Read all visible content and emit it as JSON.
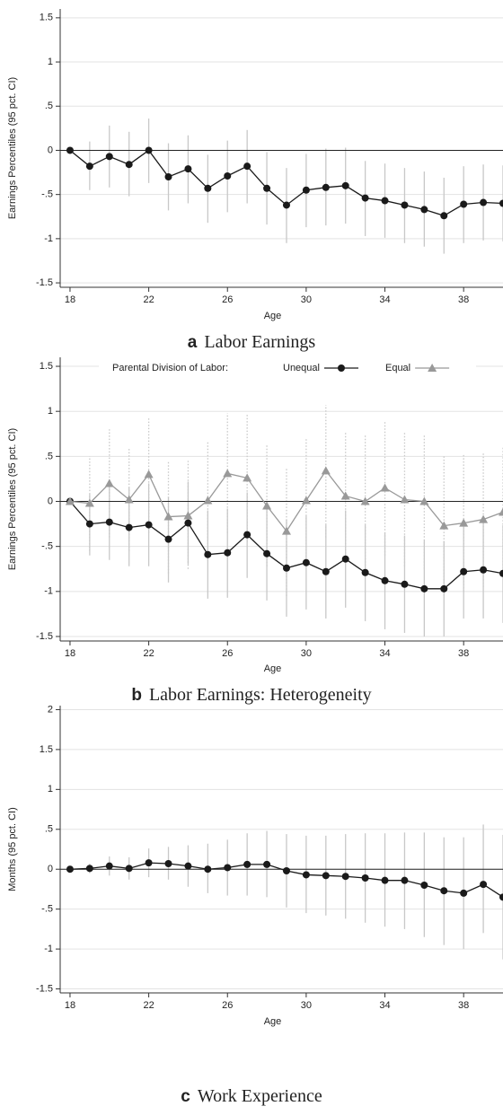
{
  "chart_data": [
    {
      "type": "line",
      "label": "a",
      "title": "Labor Earnings",
      "x_label": "Age",
      "y_label": "Earnings Percentiles (95 pct. CI)",
      "x": [
        18,
        19,
        20,
        21,
        22,
        23,
        24,
        25,
        26,
        27,
        28,
        29,
        30,
        31,
        32,
        33,
        34,
        35,
        36,
        37,
        38,
        39,
        40
      ],
      "xlim": [
        17.5,
        40
      ],
      "xticks": [
        18,
        22,
        26,
        30,
        34,
        38
      ],
      "ylim": [
        -1.55,
        1.6
      ],
      "yticks": [
        1.5,
        1,
        {
          "value": 0.5,
          "label": ".5"
        },
        0,
        {
          "value": -0.5,
          "label": "-.5"
        },
        -1,
        -1.5
      ],
      "grid": true,
      "hline": 0,
      "series": [
        {
          "color": "#1a1a1a",
          "ci_color": "#c8c8c8",
          "ci_dotted": false,
          "marker": "circle",
          "values": [
            0,
            -0.18,
            -0.07,
            -0.16,
            0,
            -0.3,
            -0.21,
            -0.43,
            -0.29,
            -0.18,
            -0.43,
            -0.62,
            -0.45,
            -0.42,
            -0.4,
            -0.54,
            -0.57,
            -0.62,
            -0.67,
            -0.74,
            -0.61,
            -0.59,
            -0.6
          ],
          "ci_low": [
            null,
            -0.45,
            -0.42,
            -0.52,
            -0.37,
            -0.68,
            -0.6,
            -0.82,
            -0.7,
            -0.6,
            -0.84,
            -1.05,
            -0.87,
            -0.85,
            -0.83,
            -0.97,
            -0.99,
            -1.05,
            -1.09,
            -1.17,
            -1.05,
            -1.02,
            -1.03
          ],
          "ci_high": [
            null,
            0.1,
            0.28,
            0.21,
            0.36,
            0.08,
            0.17,
            -0.05,
            0.11,
            0.23,
            -0.02,
            -0.2,
            -0.04,
            0.02,
            0.03,
            -0.12,
            -0.15,
            -0.2,
            -0.24,
            -0.31,
            -0.18,
            -0.16,
            -0.17
          ]
        }
      ]
    },
    {
      "type": "line",
      "label": "b",
      "title": "Labor Earnings: Heterogeneity",
      "x_label": "Age",
      "y_label": "Earnings Percentiles (95 pct. CI)",
      "legend_title": "Parental Division of Labor:",
      "legend": "top",
      "x": [
        18,
        19,
        20,
        21,
        22,
        23,
        24,
        25,
        26,
        27,
        28,
        29,
        30,
        31,
        32,
        33,
        34,
        35,
        36,
        37,
        38,
        39,
        40
      ],
      "xlim": [
        17.5,
        40
      ],
      "xticks": [
        18,
        22,
        26,
        30,
        34,
        38
      ],
      "ylim": [
        -1.55,
        1.6
      ],
      "yticks": [
        1.5,
        1,
        {
          "value": 0.5,
          "label": ".5"
        },
        0,
        {
          "value": -0.5,
          "label": "-.5"
        },
        -1,
        -1.5
      ],
      "grid": true,
      "hline": 0,
      "series": [
        {
          "name": "Unequal",
          "color": "#1a1a1a",
          "ci_color": "#c8c8c8",
          "ci_dotted": false,
          "marker": "circle",
          "values": [
            0,
            -0.25,
            -0.23,
            -0.29,
            -0.26,
            -0.42,
            -0.24,
            -0.59,
            -0.57,
            -0.37,
            -0.58,
            -0.74,
            -0.68,
            -0.78,
            -0.64,
            -0.79,
            -0.88,
            -0.92,
            -0.97,
            -0.97,
            -0.78,
            -0.76,
            -0.8
          ],
          "ci_low": [
            null,
            -0.6,
            -0.65,
            -0.72,
            -0.72,
            -0.9,
            -0.7,
            -1.08,
            -1.07,
            -0.85,
            -1.1,
            -1.28,
            -1.2,
            -1.3,
            -1.18,
            -1.33,
            -1.42,
            -1.46,
            -1.5,
            -1.5,
            -1.3,
            -1.3,
            -1.35
          ],
          "ci_high": [
            null,
            0.08,
            0.2,
            0.15,
            0.2,
            0.05,
            0.22,
            -0.1,
            -0.08,
            0.1,
            -0.07,
            -0.2,
            -0.16,
            -0.26,
            -0.1,
            -0.26,
            -0.35,
            -0.38,
            -0.43,
            -0.44,
            -0.25,
            -0.22,
            -0.26
          ]
        },
        {
          "name": "Equal",
          "color": "#999999",
          "ci_color": "#c8c8c8",
          "ci_dotted": true,
          "marker": "triangle",
          "values": [
            0,
            -0.02,
            0.2,
            0.02,
            0.3,
            -0.17,
            -0.16,
            0.01,
            0.31,
            0.26,
            -0.05,
            -0.33,
            0.01,
            0.34,
            0.06,
            0,
            0.15,
            0.02,
            0,
            -0.27,
            -0.24,
            -0.2,
            -0.12
          ],
          "ci_low": [
            null,
            -0.55,
            -0.4,
            -0.55,
            -0.35,
            -0.8,
            -0.75,
            -0.65,
            -0.35,
            -0.45,
            -0.72,
            -1.05,
            -0.65,
            -0.4,
            -0.65,
            -0.75,
            -0.6,
            -0.72,
            -0.75,
            -1.05,
            -1,
            -0.95,
            -0.85
          ],
          "ci_high": [
            null,
            0.5,
            0.8,
            0.6,
            0.93,
            0.45,
            0.45,
            0.67,
            0.98,
            0.98,
            0.62,
            0.38,
            0.7,
            1.07,
            0.76,
            0.75,
            0.9,
            0.76,
            0.75,
            0.5,
            0.52,
            0.55,
            0.6
          ]
        }
      ]
    },
    {
      "type": "line",
      "label": "c",
      "title": "Work Experience",
      "x_label": "Age",
      "y_label": "Months (95 pct. CI)",
      "x": [
        18,
        19,
        20,
        21,
        22,
        23,
        24,
        25,
        26,
        27,
        28,
        29,
        30,
        31,
        32,
        33,
        34,
        35,
        36,
        37,
        38,
        39,
        40
      ],
      "xlim": [
        17.5,
        40
      ],
      "xticks": [
        18,
        22,
        26,
        30,
        34,
        38
      ],
      "ylim": [
        -1.55,
        2.05
      ],
      "yticks": [
        2,
        1.5,
        1,
        {
          "value": 0.5,
          "label": ".5"
        },
        0,
        {
          "value": -0.5,
          "label": "-.5"
        },
        -1,
        -1.5
      ],
      "grid": true,
      "hline": 0,
      "series": [
        {
          "color": "#1a1a1a",
          "ci_color": "#c8c8c8",
          "ci_dotted": false,
          "marker": "circle",
          "values": [
            0,
            0.01,
            0.04,
            0.01,
            0.08,
            0.07,
            0.04,
            0,
            0.02,
            0.06,
            0.06,
            -0.02,
            -0.07,
            -0.08,
            -0.09,
            -0.11,
            -0.14,
            -0.14,
            -0.2,
            -0.27,
            -0.3,
            -0.19,
            -0.35
          ],
          "ci_low": [
            null,
            -0.05,
            -0.08,
            -0.13,
            -0.1,
            -0.13,
            -0.22,
            -0.3,
            -0.33,
            -0.33,
            -0.35,
            -0.48,
            -0.55,
            -0.58,
            -0.62,
            -0.67,
            -0.72,
            -0.75,
            -0.85,
            -0.95,
            -1,
            -0.8,
            -1.13
          ],
          "ci_high": [
            null,
            0.07,
            0.16,
            0.15,
            0.26,
            0.28,
            0.3,
            0.32,
            0.37,
            0.45,
            0.48,
            0.44,
            0.42,
            0.42,
            0.44,
            0.45,
            0.45,
            0.46,
            0.46,
            0.4,
            0.4,
            0.56,
            0.43
          ]
        }
      ]
    }
  ]
}
